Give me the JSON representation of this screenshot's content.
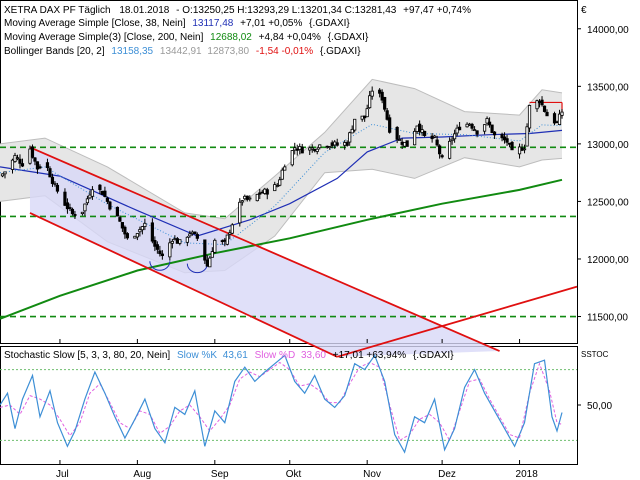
{
  "symbol_marker": "€",
  "legend": {
    "main": {
      "name": "XETRA DAX PF Täglich",
      "date": "18.01.2018",
      "ohlc": "- O:13250,25 H:13293,29 L:13201,34 C:13281,43",
      "change": "+97,47 +0,74%"
    },
    "ma38": {
      "name": "Moving Average Simple [Close, 38, Nein]",
      "value": "13117,48",
      "change": "+7,01 +0,05%",
      "source": "{.GDAXI}",
      "color": "#1f2fb5"
    },
    "ma200": {
      "name": "Moving Average Simple(3) [Close, 200, Nein]",
      "value": "12688,02",
      "change": "+4,84 +0,04%",
      "source": "{.GDAXI}",
      "color": "#118a11"
    },
    "bb": {
      "name": "Bollinger Bands [20, 2]",
      "mid": "13158,35",
      "upper": "13442,91",
      "lower": "12873,80",
      "change": "-1,54 -0,01%",
      "source": "{.GDAXI}",
      "color": "#3d8fd6"
    },
    "stoch": {
      "name": "Stochastic Slow [5, 3, 3, 80, 20, Nein]",
      "k_label": "Slow %K",
      "k_value": "43,61",
      "d_label": "Slow %D",
      "d_value": "33,60",
      "change": "+17,01 +63,94%",
      "source": "{.GDAXI}",
      "k_color": "#3d8fd6",
      "d_color": "#e060e0"
    },
    "stoch_tag": "SSTOC"
  },
  "chart_data": [
    {
      "type": "candlestick",
      "ylim": [
        11270,
        14250
      ],
      "x_range": [
        "2017-06-07",
        "2018-01-24"
      ],
      "yticks": [
        {
          "value": 11500,
          "label": "11500,00"
        },
        {
          "value": 12000,
          "label": "12000,00"
        },
        {
          "value": 12500,
          "label": "12500,00"
        },
        {
          "value": 13000,
          "label": "13000,00"
        },
        {
          "value": 13500,
          "label": "13500,00"
        },
        {
          "value": 14000,
          "label": "14000,00"
        }
      ],
      "xticks": [
        {
          "date": "2017-07-01",
          "label": "Jul"
        },
        {
          "date": "2017-08-01",
          "label": "Aug"
        },
        {
          "date": "2017-09-01",
          "label": "Sep"
        },
        {
          "date": "2017-10-01",
          "label": "Okt"
        },
        {
          "date": "2017-11-01",
          "label": "Nov"
        },
        {
          "date": "2017-12-01",
          "label": "Dez"
        },
        {
          "date": "2018-01-01",
          "label": "2018"
        }
      ],
      "close_path": [
        [
          "2017-06-07",
          12720
        ],
        [
          "2017-06-10",
          12780
        ],
        [
          "2017-06-13",
          12890
        ],
        [
          "2017-06-16",
          12830
        ],
        [
          "2017-06-19",
          12960
        ],
        [
          "2017-06-22",
          12790
        ],
        [
          "2017-06-25",
          12840
        ],
        [
          "2017-06-29",
          12630
        ],
        [
          "2017-07-03",
          12480
        ],
        [
          "2017-07-06",
          12390
        ],
        [
          "2017-07-10",
          12420
        ],
        [
          "2017-07-14",
          12630
        ],
        [
          "2017-07-18",
          12580
        ],
        [
          "2017-07-21",
          12460
        ],
        [
          "2017-07-25",
          12320
        ],
        [
          "2017-07-28",
          12170
        ],
        [
          "2017-08-01",
          12240
        ],
        [
          "2017-08-04",
          12300
        ],
        [
          "2017-08-08",
          12110
        ],
        [
          "2017-08-11",
          12020
        ],
        [
          "2017-08-15",
          12180
        ],
        [
          "2017-08-18",
          12140
        ],
        [
          "2017-08-22",
          12230
        ],
        [
          "2017-08-25",
          12180
        ],
        [
          "2017-08-29",
          11940
        ],
        [
          "2017-09-01",
          12160
        ],
        [
          "2017-09-05",
          12130
        ],
        [
          "2017-09-08",
          12310
        ],
        [
          "2017-09-12",
          12520
        ],
        [
          "2017-09-15",
          12510
        ],
        [
          "2017-09-19",
          12570
        ],
        [
          "2017-09-22",
          12590
        ],
        [
          "2017-09-26",
          12640
        ],
        [
          "2017-09-29",
          12830
        ],
        [
          "2017-10-03",
          12970
        ],
        [
          "2017-10-06",
          12950
        ],
        [
          "2017-10-10",
          12960
        ],
        [
          "2017-10-13",
          12990
        ],
        [
          "2017-10-17",
          13000
        ],
        [
          "2017-10-20",
          12990
        ],
        [
          "2017-10-24",
          13010
        ],
        [
          "2017-10-27",
          13220
        ],
        [
          "2017-10-31",
          13230
        ],
        [
          "2017-11-03",
          13470
        ],
        [
          "2017-11-07",
          13400
        ],
        [
          "2017-11-10",
          13130
        ],
        [
          "2017-11-14",
          13030
        ],
        [
          "2017-11-17",
          12990
        ],
        [
          "2017-11-21",
          13170
        ],
        [
          "2017-11-24",
          13060
        ],
        [
          "2017-11-28",
          13040
        ],
        [
          "2017-12-01",
          12860
        ],
        [
          "2017-12-05",
          13050
        ],
        [
          "2017-12-08",
          13150
        ],
        [
          "2017-12-12",
          13180
        ],
        [
          "2017-12-15",
          13110
        ],
        [
          "2017-12-19",
          13200
        ],
        [
          "2017-12-22",
          13070
        ],
        [
          "2017-12-27",
          13020
        ],
        [
          "2017-12-29",
          12920
        ],
        [
          "2018-01-03",
          12980
        ],
        [
          "2018-01-05",
          13320
        ],
        [
          "2018-01-09",
          13380
        ],
        [
          "2018-01-12",
          13250
        ],
        [
          "2018-01-16",
          13180
        ],
        [
          "2018-01-18",
          13281
        ]
      ],
      "ma38_path": [
        [
          "2017-06-07",
          12800
        ],
        [
          "2017-07-01",
          12720
        ],
        [
          "2017-08-01",
          12420
        ],
        [
          "2017-08-25",
          12200
        ],
        [
          "2017-09-15",
          12340
        ],
        [
          "2017-10-01",
          12480
        ],
        [
          "2017-10-20",
          12700
        ],
        [
          "2017-11-01",
          12930
        ],
        [
          "2017-11-15",
          13050
        ],
        [
          "2017-12-01",
          13060
        ],
        [
          "2017-12-20",
          13080
        ],
        [
          "2018-01-05",
          13090
        ],
        [
          "2018-01-18",
          13117
        ]
      ],
      "ma200_path": [
        [
          "2017-06-07",
          11480
        ],
        [
          "2017-07-01",
          11680
        ],
        [
          "2017-08-01",
          11900
        ],
        [
          "2017-09-01",
          12050
        ],
        [
          "2017-10-01",
          12180
        ],
        [
          "2017-11-01",
          12340
        ],
        [
          "2017-12-01",
          12480
        ],
        [
          "2018-01-01",
          12600
        ],
        [
          "2018-01-18",
          12688
        ]
      ],
      "bb_upper_path": [
        [
          "2017-06-07",
          13000
        ],
        [
          "2017-06-25",
          13050
        ],
        [
          "2017-07-20",
          12800
        ],
        [
          "2017-08-20",
          12400
        ],
        [
          "2017-09-05",
          12350
        ],
        [
          "2017-09-25",
          12720
        ],
        [
          "2017-10-15",
          13100
        ],
        [
          "2017-11-03",
          13560
        ],
        [
          "2017-11-20",
          13480
        ],
        [
          "2017-12-10",
          13280
        ],
        [
          "2018-01-01",
          13250
        ],
        [
          "2018-01-10",
          13470
        ],
        [
          "2018-01-18",
          13443
        ]
      ],
      "bb_lower_path": [
        [
          "2017-06-07",
          12500
        ],
        [
          "2017-06-25",
          12550
        ],
        [
          "2017-07-20",
          12150
        ],
        [
          "2017-08-20",
          11880
        ],
        [
          "2017-09-05",
          11900
        ],
        [
          "2017-09-25",
          12200
        ],
        [
          "2017-10-15",
          12750
        ],
        [
          "2017-11-03",
          12780
        ],
        [
          "2017-11-20",
          12700
        ],
        [
          "2017-12-10",
          12880
        ],
        [
          "2018-01-01",
          12800
        ],
        [
          "2018-01-10",
          12860
        ],
        [
          "2018-01-18",
          12874
        ]
      ],
      "horizontal_levels": [
        {
          "value": 12970,
          "style": "dashed",
          "color": "#118a11"
        },
        {
          "value": 12370,
          "style": "dashed",
          "color": "#118a11"
        },
        {
          "value": 11500,
          "style": "dashed",
          "color": "#118a11"
        }
      ],
      "trend_channel": {
        "upper": [
          [
            "2017-06-19",
            12970
          ],
          [
            "2017-12-24",
            11200
          ]
        ],
        "lower": [
          [
            "2017-06-19",
            12400
          ],
          [
            "2017-10-20",
            11150
          ]
        ],
        "color": "#e01010"
      },
      "uptrend_line": [
        [
          "2017-10-20",
          11150
        ],
        [
          "2018-01-24",
          11760
        ]
      ],
      "resistance_box": {
        "from": "2018-01-05",
        "to": "2018-01-18",
        "value": 13360
      },
      "bottom_arcs": [
        {
          "center": "2017-08-10",
          "value": 11980
        },
        {
          "center": "2017-08-25",
          "value": 11960
        }
      ]
    },
    {
      "type": "line",
      "title": "Stochastic Slow",
      "ylim": [
        0,
        100
      ],
      "x_range": [
        "2017-06-07",
        "2018-01-24"
      ],
      "yticks": [
        {
          "value": 50,
          "label": "50,00"
        }
      ],
      "levels": [
        80,
        20
      ],
      "series": [
        {
          "name": "Slow %K",
          "values": [
            [
              "2017-06-07",
              50
            ],
            [
              "2017-06-10",
              60
            ],
            [
              "2017-06-13",
              30
            ],
            [
              "2017-06-16",
              55
            ],
            [
              "2017-06-20",
              75
            ],
            [
              "2017-06-23",
              40
            ],
            [
              "2017-06-27",
              62
            ],
            [
              "2017-06-30",
              35
            ],
            [
              "2017-07-04",
              15
            ],
            [
              "2017-07-07",
              28
            ],
            [
              "2017-07-11",
              55
            ],
            [
              "2017-07-15",
              78
            ],
            [
              "2017-07-19",
              60
            ],
            [
              "2017-07-23",
              40
            ],
            [
              "2017-07-27",
              22
            ],
            [
              "2017-07-31",
              38
            ],
            [
              "2017-08-04",
              55
            ],
            [
              "2017-08-08",
              30
            ],
            [
              "2017-08-12",
              18
            ],
            [
              "2017-08-16",
              48
            ],
            [
              "2017-08-20",
              42
            ],
            [
              "2017-08-24",
              62
            ],
            [
              "2017-08-28",
              15
            ],
            [
              "2017-09-01",
              45
            ],
            [
              "2017-09-05",
              35
            ],
            [
              "2017-09-09",
              70
            ],
            [
              "2017-09-13",
              82
            ],
            [
              "2017-09-17",
              70
            ],
            [
              "2017-09-21",
              78
            ],
            [
              "2017-09-25",
              85
            ],
            [
              "2017-09-29",
              92
            ],
            [
              "2017-10-03",
              70
            ],
            [
              "2017-10-07",
              60
            ],
            [
              "2017-10-11",
              75
            ],
            [
              "2017-10-15",
              55
            ],
            [
              "2017-10-19",
              48
            ],
            [
              "2017-10-23",
              58
            ],
            [
              "2017-10-27",
              85
            ],
            [
              "2017-10-31",
              80
            ],
            [
              "2017-11-04",
              92
            ],
            [
              "2017-11-08",
              70
            ],
            [
              "2017-11-12",
              25
            ],
            [
              "2017-11-16",
              10
            ],
            [
              "2017-11-20",
              40
            ],
            [
              "2017-11-24",
              35
            ],
            [
              "2017-11-28",
              55
            ],
            [
              "2017-12-02",
              12
            ],
            [
              "2017-12-06",
              30
            ],
            [
              "2017-12-10",
              65
            ],
            [
              "2017-12-14",
              80
            ],
            [
              "2017-12-18",
              60
            ],
            [
              "2017-12-22",
              45
            ],
            [
              "2017-12-26",
              30
            ],
            [
              "2017-12-30",
              15
            ],
            [
              "2018-01-03",
              35
            ],
            [
              "2018-01-07",
              85
            ],
            [
              "2018-01-11",
              88
            ],
            [
              "2018-01-14",
              40
            ],
            [
              "2018-01-16",
              28
            ],
            [
              "2018-01-18",
              43.61
            ]
          ]
        },
        {
          "name": "Slow %D",
          "values": [
            [
              "2017-06-07",
              48
            ],
            [
              "2017-06-11",
              50
            ],
            [
              "2017-06-15",
              42
            ],
            [
              "2017-06-19",
              58
            ],
            [
              "2017-06-23",
              55
            ],
            [
              "2017-06-27",
              50
            ],
            [
              "2017-07-01",
              38
            ],
            [
              "2017-07-05",
              24
            ],
            [
              "2017-07-09",
              35
            ],
            [
              "2017-07-13",
              60
            ],
            [
              "2017-07-17",
              68
            ],
            [
              "2017-07-21",
              52
            ],
            [
              "2017-07-25",
              35
            ],
            [
              "2017-07-29",
              30
            ],
            [
              "2017-08-02",
              45
            ],
            [
              "2017-08-06",
              42
            ],
            [
              "2017-08-10",
              26
            ],
            [
              "2017-08-14",
              32
            ],
            [
              "2017-08-18",
              45
            ],
            [
              "2017-08-22",
              50
            ],
            [
              "2017-08-26",
              40
            ],
            [
              "2017-08-30",
              28
            ],
            [
              "2017-09-03",
              38
            ],
            [
              "2017-09-07",
              50
            ],
            [
              "2017-09-11",
              72
            ],
            [
              "2017-09-15",
              78
            ],
            [
              "2017-09-19",
              74
            ],
            [
              "2017-09-23",
              80
            ],
            [
              "2017-09-27",
              86
            ],
            [
              "2017-10-01",
              80
            ],
            [
              "2017-10-05",
              66
            ],
            [
              "2017-10-09",
              68
            ],
            [
              "2017-10-13",
              62
            ],
            [
              "2017-10-17",
              52
            ],
            [
              "2017-10-21",
              52
            ],
            [
              "2017-10-25",
              68
            ],
            [
              "2017-10-29",
              82
            ],
            [
              "2017-11-02",
              86
            ],
            [
              "2017-11-06",
              82
            ],
            [
              "2017-11-10",
              50
            ],
            [
              "2017-11-14",
              20
            ],
            [
              "2017-11-18",
              25
            ],
            [
              "2017-11-22",
              38
            ],
            [
              "2017-11-26",
              42
            ],
            [
              "2017-11-30",
              35
            ],
            [
              "2017-12-04",
              20
            ],
            [
              "2017-12-08",
              45
            ],
            [
              "2017-12-12",
              70
            ],
            [
              "2017-12-16",
              72
            ],
            [
              "2017-12-20",
              55
            ],
            [
              "2017-12-24",
              40
            ],
            [
              "2017-12-28",
              25
            ],
            [
              "2018-01-01",
              22
            ],
            [
              "2018-01-05",
              60
            ],
            [
              "2018-01-09",
              85
            ],
            [
              "2018-01-13",
              62
            ],
            [
              "2018-01-16",
              35
            ],
            [
              "2018-01-18",
              33.6
            ]
          ]
        }
      ]
    }
  ]
}
